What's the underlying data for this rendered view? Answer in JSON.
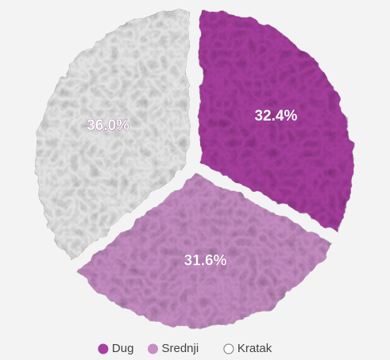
{
  "chart_data": {
    "type": "pie",
    "categories": [
      "Dug",
      "Srednji",
      "Kratak"
    ],
    "values": [
      32.4,
      31.6,
      36.0
    ],
    "value_labels": [
      "32.4%",
      "31.6%",
      "36.0%"
    ],
    "colors": [
      "#a8409f",
      "#c68ec3",
      "#e6e6e6"
    ]
  }
}
